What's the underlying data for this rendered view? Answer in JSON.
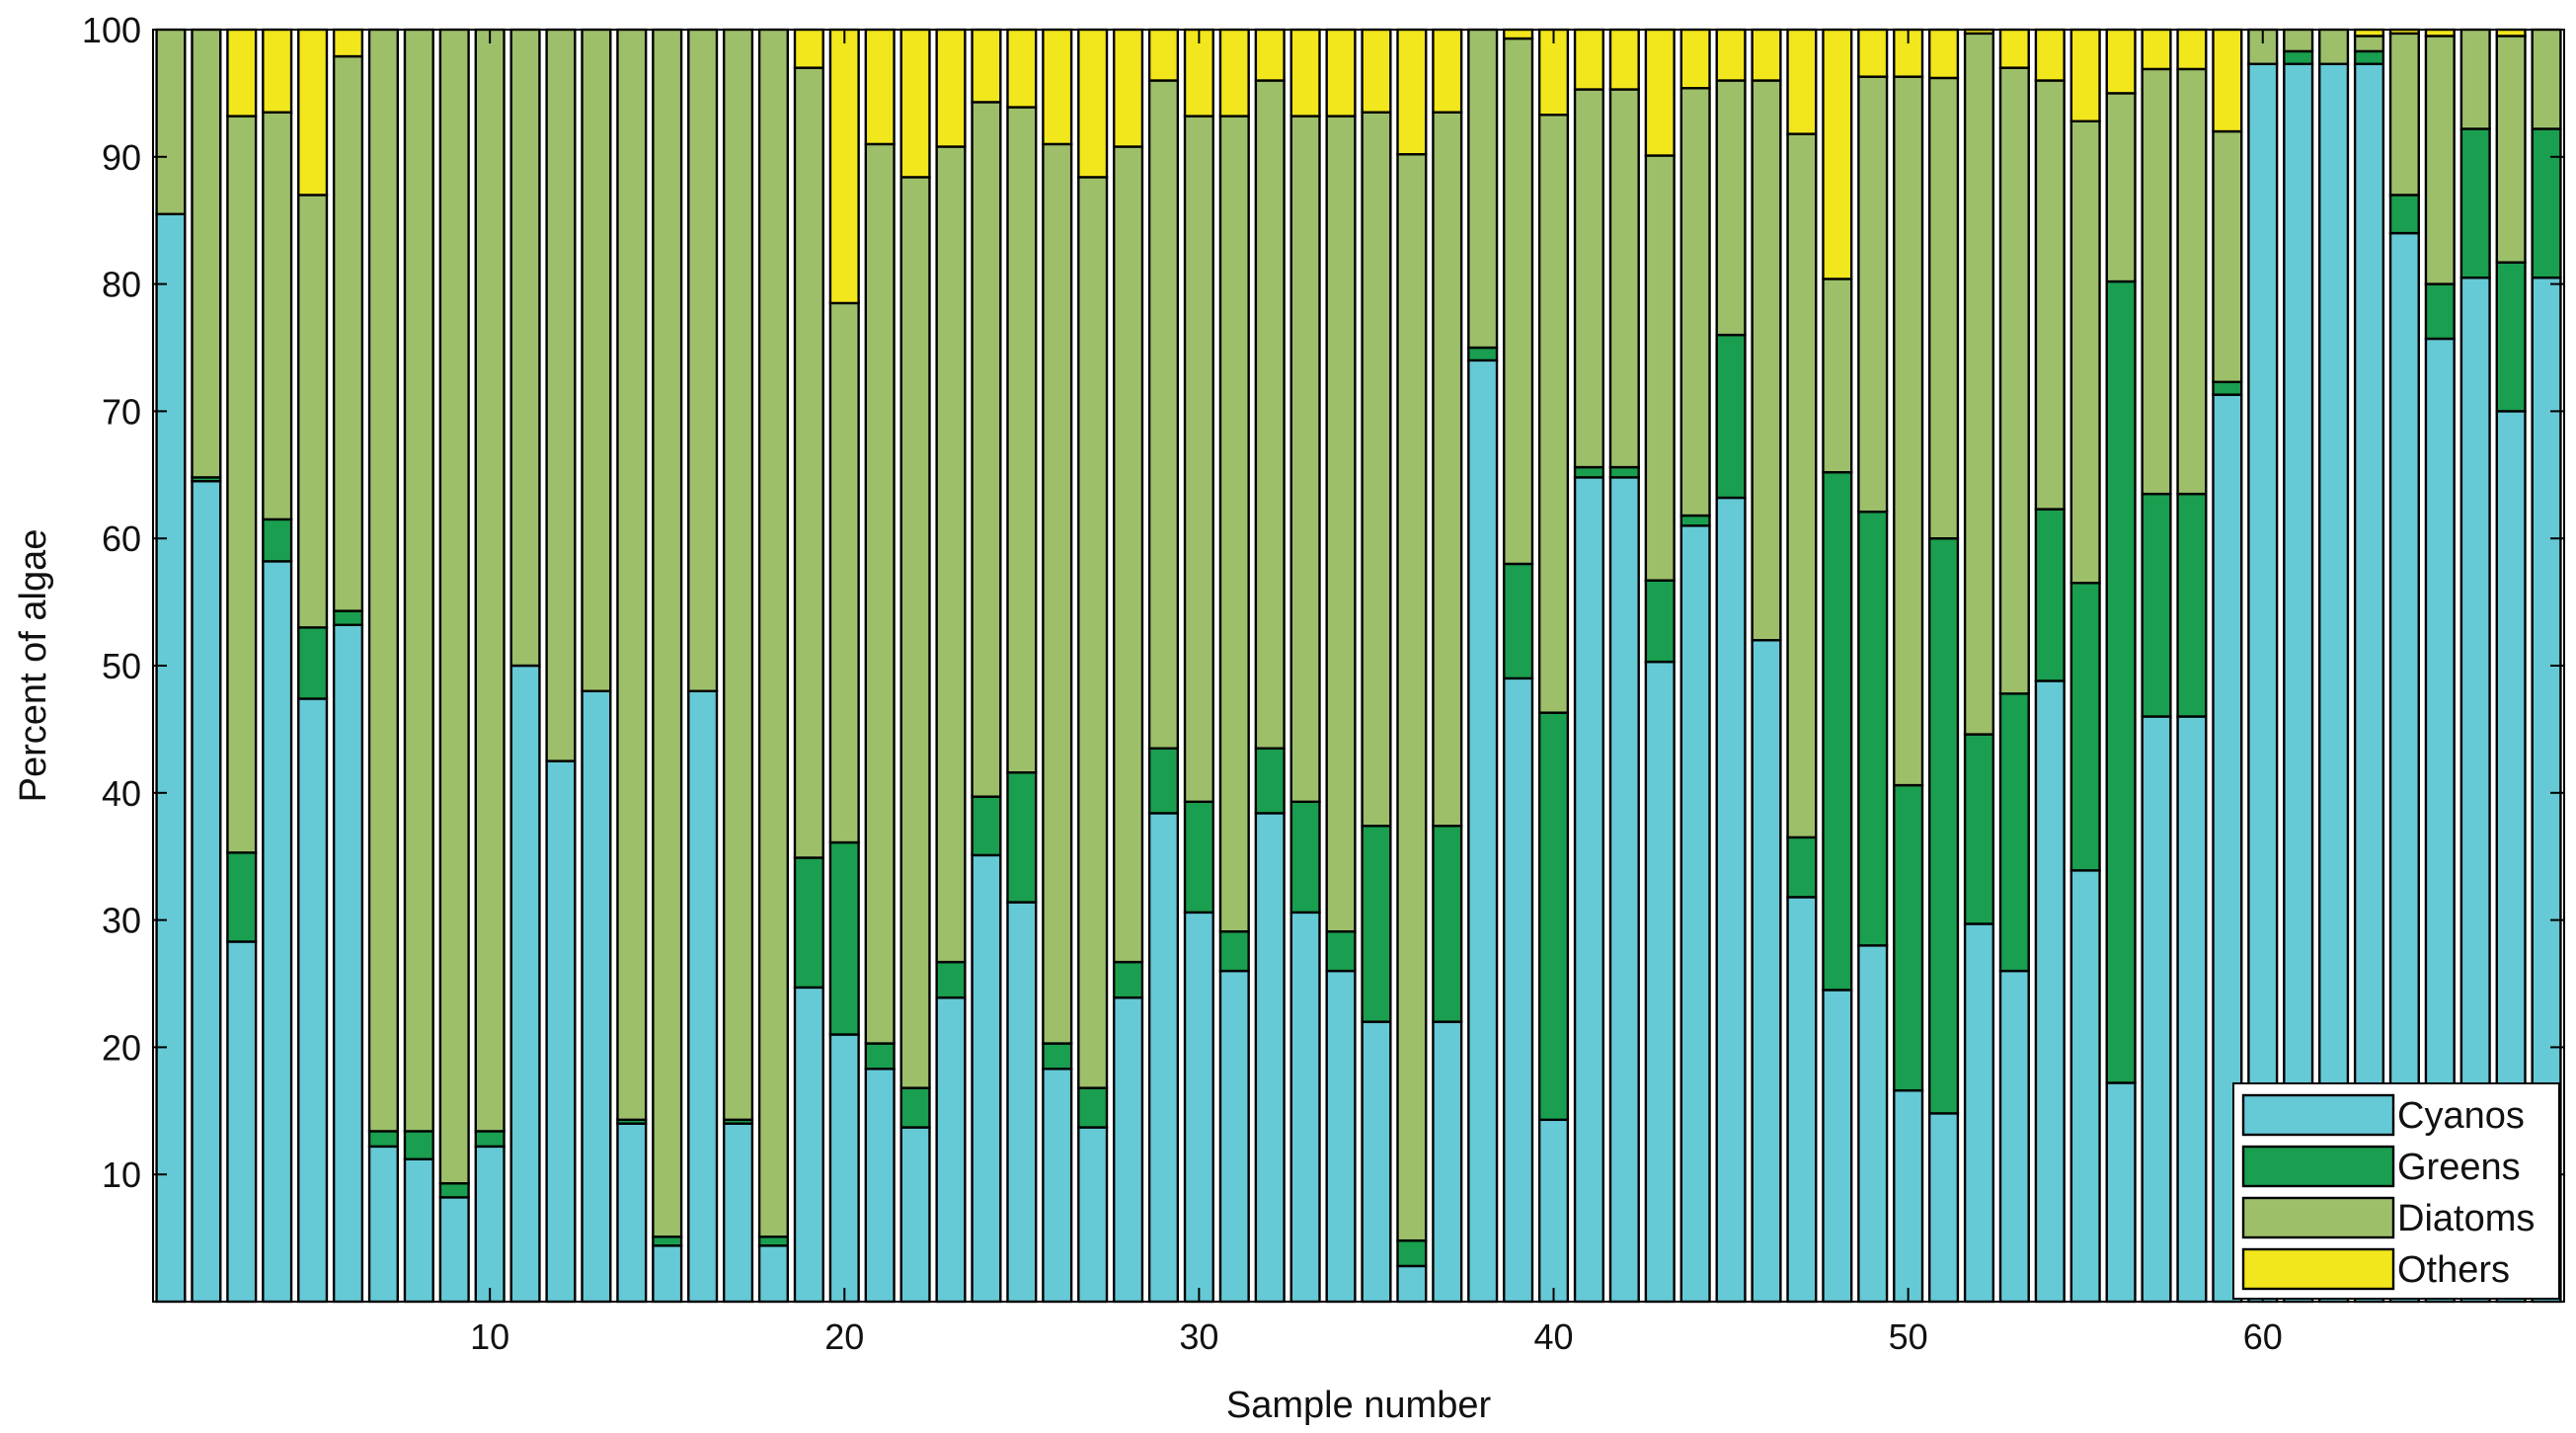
{
  "chart_data": {
    "type": "bar",
    "stacked": true,
    "xlabel": "Sample number",
    "ylabel": "Percent of algae",
    "xlim": [
      0.5,
      68.5
    ],
    "ylim": [
      0,
      100
    ],
    "x_ticks": [
      10,
      20,
      30,
      40,
      50,
      60
    ],
    "y_ticks": [
      10,
      20,
      30,
      40,
      50,
      60,
      70,
      80,
      90,
      100
    ],
    "grid": false,
    "legend_position": "bottom-right",
    "categories": [
      1,
      2,
      3,
      4,
      5,
      6,
      7,
      8,
      9,
      10,
      11,
      12,
      13,
      14,
      15,
      16,
      17,
      18,
      19,
      20,
      21,
      22,
      23,
      24,
      25,
      26,
      27,
      28,
      29,
      30,
      31,
      32,
      33,
      34,
      35,
      36,
      37,
      38,
      39,
      40,
      41,
      42,
      43,
      44,
      45,
      46,
      47,
      48,
      49,
      50,
      51,
      52,
      53,
      54,
      55,
      56,
      57,
      58,
      59,
      60,
      61,
      62,
      63,
      64,
      65,
      66,
      67,
      68
    ],
    "series": [
      {
        "name": "Cyanos",
        "color": "#66c9d6",
        "values": [
          85.5,
          64.5,
          28.3,
          58.2,
          47.4,
          53.2,
          12.2,
          11.2,
          8.2,
          12.2,
          50.0,
          42.5,
          48.0,
          14.0,
          4.4,
          48.0,
          14.0,
          4.4,
          24.7,
          21.0,
          18.3,
          13.7,
          23.9,
          35.1,
          31.4,
          18.3,
          13.7,
          23.9,
          38.4,
          30.6,
          26.0,
          38.4,
          30.6,
          26.0,
          22.0,
          2.8,
          22.0,
          74.0,
          49.0,
          14.3,
          64.8,
          64.8,
          50.3,
          61.0,
          63.2,
          52.0,
          31.8,
          24.5,
          28.0,
          16.6,
          14.8,
          29.7,
          26.0,
          48.8,
          33.9,
          17.2,
          46.0,
          46.0,
          71.3,
          97.3,
          97.3,
          97.3,
          97.3,
          84.0,
          75.7,
          80.5,
          70.0,
          80.5
        ]
      },
      {
        "name": "Greens",
        "color": "#1a9e4f",
        "values": [
          0,
          0.3,
          7.0,
          3.3,
          5.6,
          1.1,
          1.2,
          2.2,
          1.1,
          1.2,
          0,
          0,
          0,
          0.3,
          0.7,
          0,
          0.3,
          0.7,
          10.2,
          15.1,
          2.0,
          3.1,
          2.8,
          4.6,
          10.2,
          2.0,
          3.1,
          2.8,
          5.1,
          8.7,
          3.1,
          5.1,
          8.7,
          3.1,
          15.4,
          2.0,
          15.4,
          1.0,
          9.0,
          32.0,
          0.8,
          0.8,
          6.4,
          0.8,
          12.8,
          0,
          4.7,
          40.7,
          34.1,
          24.0,
          45.2,
          14.9,
          21.8,
          13.5,
          22.6,
          63.0,
          17.5,
          17.5,
          1.0,
          0,
          1.0,
          0,
          1.0,
          3.0,
          4.3,
          11.7,
          11.7,
          11.7
        ]
      },
      {
        "name": "Diatoms",
        "color": "#9dbf6a",
        "values": [
          14.5,
          35.2,
          57.9,
          32.0,
          34.0,
          43.6,
          86.6,
          86.6,
          90.7,
          86.6,
          50.0,
          57.5,
          52.0,
          85.7,
          94.9,
          52.0,
          85.7,
          94.9,
          62.1,
          42.4,
          70.7,
          71.6,
          64.1,
          54.6,
          52.3,
          70.7,
          71.6,
          64.1,
          52.5,
          53.9,
          64.1,
          52.5,
          53.9,
          64.1,
          56.1,
          85.4,
          56.1,
          25.0,
          41.3,
          47.0,
          29.7,
          29.7,
          33.4,
          33.6,
          20.0,
          44.0,
          55.3,
          15.2,
          34.2,
          55.7,
          36.2,
          55.1,
          49.2,
          33.7,
          36.3,
          14.8,
          33.4,
          33.4,
          19.7,
          2.7,
          1.7,
          2.7,
          1.2,
          12.7,
          19.5,
          7.8,
          17.8,
          7.8
        ]
      },
      {
        "name": "Others",
        "color": "#f2e61c",
        "values": [
          0,
          0,
          6.8,
          6.5,
          13.0,
          2.1,
          0,
          0,
          0,
          0,
          0,
          0,
          0,
          0,
          0,
          0,
          0,
          0,
          3.0,
          21.5,
          9.0,
          11.6,
          9.2,
          5.7,
          6.1,
          9.0,
          11.6,
          9.2,
          4.0,
          6.8,
          6.8,
          4.0,
          6.8,
          6.8,
          6.5,
          9.8,
          6.5,
          0,
          0.7,
          6.7,
          4.7,
          4.7,
          9.9,
          4.6,
          4.0,
          4.0,
          8.2,
          19.6,
          3.7,
          3.7,
          3.8,
          0.3,
          3.0,
          4.0,
          7.2,
          5.0,
          3.1,
          3.1,
          8.0,
          0,
          0,
          0,
          0.5,
          0.3,
          0.5,
          0,
          0.5,
          0
        ]
      }
    ]
  }
}
